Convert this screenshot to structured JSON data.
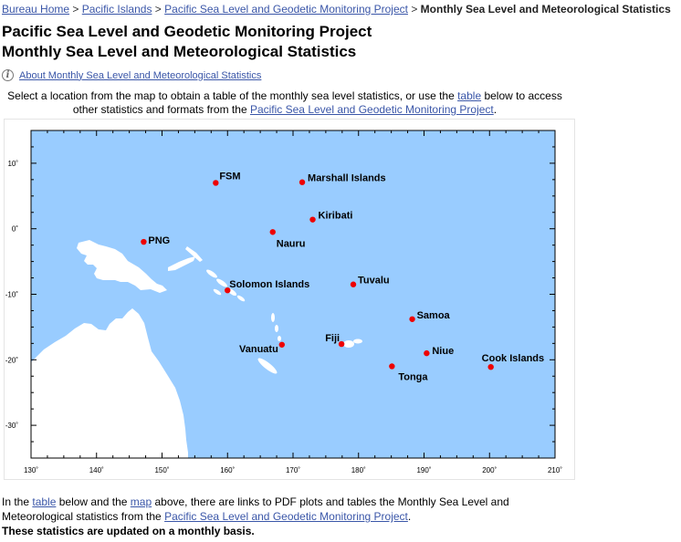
{
  "breadcrumb": {
    "home": "Bureau Home",
    "pacific": "Pacific Islands",
    "project": "Pacific Sea Level and Geodetic Monitoring Project",
    "current": "Monthly Sea Level and Meteorological Statistics",
    "separator": ">"
  },
  "title": {
    "line1": "Pacific Sea Level and Geodetic Monitoring Project",
    "line2": "Monthly Sea Level and Meteorological Statistics"
  },
  "about_link": "About Monthly Sea Level and Meteorological Statistics",
  "intro": {
    "part1": "Select a location from the map to obtain a table of the monthly sea level statistics, or use the ",
    "table_link": "table",
    "part2": " below to access other statistics and formats from the ",
    "project_link": "Pacific Sea Level and Geodetic Monitoring Project",
    "part3": "."
  },
  "map": {
    "ocean_color": "#99ccff",
    "land_color": "#ffffff",
    "marker_color": "#ee0000",
    "lon_range": [
      130,
      210
    ],
    "lat_range": [
      -35,
      15
    ],
    "lon_ticks": [
      "130˚",
      "140˚",
      "150˚",
      "160˚",
      "170˚",
      "180˚",
      "190˚",
      "200˚",
      "210˚"
    ],
    "lat_ticks": [
      "10˚",
      "0˚",
      "-10˚",
      "-20˚",
      "-30˚"
    ],
    "locations": [
      {
        "name": "FSM",
        "lon": 158.2,
        "lat": 7.0
      },
      {
        "name": "Marshall Islands",
        "lon": 171.4,
        "lat": 7.1
      },
      {
        "name": "Kiribati",
        "lon": 173.0,
        "lat": 1.4
      },
      {
        "name": "Nauru",
        "lon": 166.9,
        "lat": -0.5
      },
      {
        "name": "PNG",
        "lon": 147.2,
        "lat": -2.0
      },
      {
        "name": "Solomon Islands",
        "lon": 160.0,
        "lat": -9.4
      },
      {
        "name": "Tuvalu",
        "lon": 179.2,
        "lat": -8.5
      },
      {
        "name": "Samoa",
        "lon": 188.2,
        "lat": -13.8
      },
      {
        "name": "Fiji",
        "lon": 177.4,
        "lat": -17.6
      },
      {
        "name": "Vanuatu",
        "lon": 168.3,
        "lat": -17.7
      },
      {
        "name": "Niue",
        "lon": 190.4,
        "lat": -19.0
      },
      {
        "name": "Tonga",
        "lon": 185.1,
        "lat": -21.0
      },
      {
        "name": "Cook Islands",
        "lon": 200.2,
        "lat": -21.1
      }
    ]
  },
  "outro": {
    "part1": "In the ",
    "table_link": "table",
    "part2": " below and the ",
    "map_link": "map",
    "part3": " above, there are links to PDF plots and tables the Monthly Sea Level and Meteorological statistics from the ",
    "project_link": "Pacific Sea Level and Geodetic Monitoring Project",
    "part4": "."
  },
  "notice": "These statistics are updated on a monthly basis."
}
